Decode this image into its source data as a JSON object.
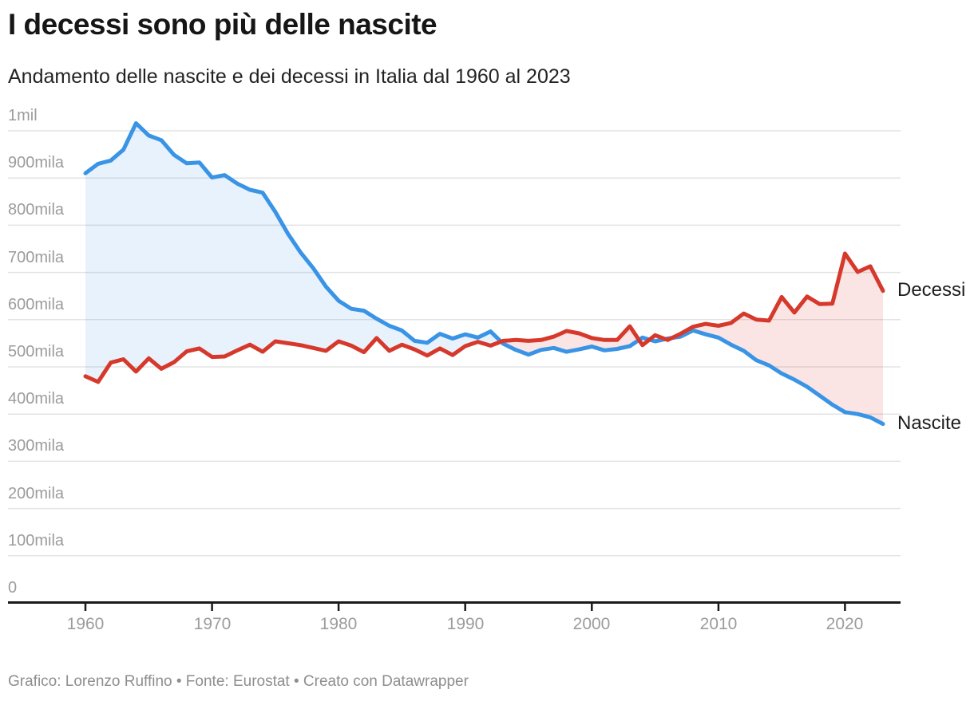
{
  "header": {
    "title": "I decessi sono più delle nascite",
    "subtitle": "Andamento delle nascite e dei decessi in Italia dal 1960 al 2023"
  },
  "footer": {
    "text": "Grafico: Lorenzo Ruffino • Fonte: Eurostat • Creato con Datawrapper"
  },
  "chart_data": {
    "type": "line",
    "title": "I decessi sono più delle nascite",
    "subtitle": "Andamento delle nascite e dei decessi in Italia dal 1960 al 2023",
    "xlabel": "",
    "ylabel": "",
    "values_unit": "thousands (mila)",
    "ylim": [
      0,
      1000
    ],
    "grid": "horizontal",
    "legend_position": "labels-at-line-ends-right",
    "x": [
      1960,
      1961,
      1962,
      1963,
      1964,
      1965,
      1966,
      1967,
      1968,
      1969,
      1970,
      1971,
      1972,
      1973,
      1974,
      1975,
      1976,
      1977,
      1978,
      1979,
      1980,
      1981,
      1982,
      1983,
      1984,
      1985,
      1986,
      1987,
      1988,
      1989,
      1990,
      1991,
      1992,
      1993,
      1994,
      1995,
      1996,
      1997,
      1998,
      1999,
      2000,
      2001,
      2002,
      2003,
      2004,
      2005,
      2006,
      2007,
      2008,
      2009,
      2010,
      2011,
      2012,
      2013,
      2014,
      2015,
      2016,
      2017,
      2018,
      2019,
      2020,
      2021,
      2022,
      2023
    ],
    "x_ticks": [
      1960,
      1970,
      1980,
      1990,
      2000,
      2010,
      2020
    ],
    "y_ticks": [
      {
        "label": "1mil",
        "value": 1000
      },
      {
        "label": "900mila",
        "value": 900
      },
      {
        "label": "800mila",
        "value": 800
      },
      {
        "label": "700mila",
        "value": 700
      },
      {
        "label": "600mila",
        "value": 600
      },
      {
        "label": "500mila",
        "value": 500
      },
      {
        "label": "400mila",
        "value": 400
      },
      {
        "label": "300mila",
        "value": 300
      },
      {
        "label": "200mila",
        "value": 200
      },
      {
        "label": "100mila",
        "value": 100
      },
      {
        "label": "0",
        "value": 0
      }
    ],
    "series": [
      {
        "name": "Decessi",
        "color": "#d6392c",
        "fill": "rgba(214,57,44,0.13)",
        "values": [
          480,
          468,
          509,
          516,
          490,
          518,
          496,
          510,
          533,
          539,
          521,
          522,
          535,
          547,
          532,
          554,
          550,
          546,
          540,
          534,
          554,
          545,
          531,
          561,
          534,
          547,
          537,
          524,
          539,
          525,
          544,
          553,
          545,
          555,
          557,
          555,
          557,
          564,
          576,
          571,
          561,
          557,
          557,
          586,
          546,
          567,
          557,
          570,
          585,
          591,
          587,
          593,
          613,
          600,
          598,
          648,
          615,
          649,
          633,
          634,
          740,
          701,
          713,
          661
        ]
      },
      {
        "name": "Nascite",
        "color": "#3a94e6",
        "fill": "rgba(58,148,230,0.12)",
        "values": [
          910,
          930,
          937,
          960,
          1016,
          990,
          980,
          949,
          931,
          933,
          901,
          906,
          888,
          875,
          869,
          828,
          782,
          742,
          709,
          670,
          640,
          623,
          619,
          602,
          587,
          577,
          555,
          551,
          570,
          560,
          569,
          562,
          575,
          549,
          536,
          526,
          536,
          540,
          532,
          537,
          543,
          535,
          538,
          544,
          562,
          554,
          560,
          564,
          577,
          569,
          562,
          547,
          534,
          514,
          503,
          486,
          473,
          458,
          439,
          420,
          404,
          400,
          393,
          379
        ]
      }
    ]
  }
}
